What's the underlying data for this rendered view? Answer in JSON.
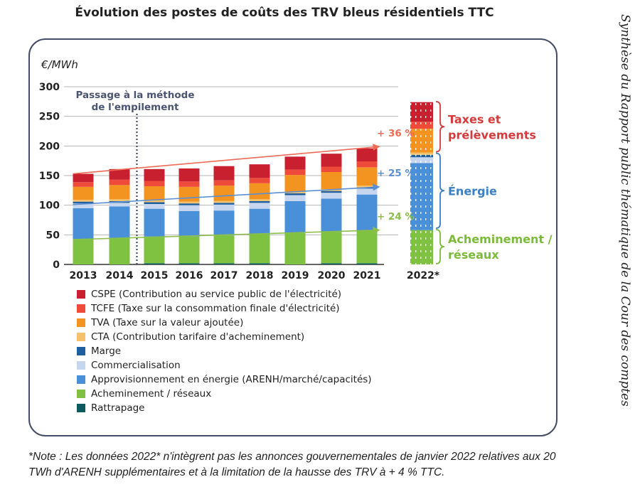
{
  "page": {
    "title": "Évolution des postes de coûts des TRV bleus résidentiels TTC",
    "side_text": "Synthèse du Rapport public thématique de la Cour des comptes",
    "note": "*Note : Les données 2022* n'intègrent pas les annonces gouvernementales de janvier 2022 relatives aux 20 TWh d'ARENH supplémentaires et à la limitation de la hausse des TRV à + 4 % TTC."
  },
  "chart_data": {
    "type": "bar",
    "stacked": true,
    "ylabel": "€/MWh",
    "ylim": [
      0,
      300
    ],
    "yticks": [
      0,
      50,
      100,
      150,
      200,
      250,
      300
    ],
    "grid": true,
    "categories": [
      "2013",
      "2014",
      "2015",
      "2016",
      "2017",
      "2018",
      "2019",
      "2020",
      "2021",
      "2022*"
    ],
    "series": [
      {
        "name": "Rattrapage",
        "color": "#0e5a5e",
        "values": [
          0,
          0,
          2,
          2,
          2,
          2,
          0,
          2,
          2,
          0
        ]
      },
      {
        "name": "Acheminement / réseaux",
        "color": "#7fc241",
        "values": [
          43,
          45,
          45,
          45,
          47,
          49,
          53,
          53,
          55,
          58
        ]
      },
      {
        "name": "Approvisionnement en énergie (ARENH/marché/capacités)",
        "color": "#4a90d9",
        "values": [
          52,
          53,
          47,
          43,
          42,
          43,
          54,
          56,
          61,
          113
        ]
      },
      {
        "name": "Commercialisation",
        "color": "#c6d6ee",
        "values": [
          8,
          6,
          8,
          10,
          10,
          10,
          10,
          10,
          10,
          10
        ]
      },
      {
        "name": "Marge",
        "color": "#1f5fa0",
        "values": [
          3,
          3,
          3,
          3,
          3,
          3,
          3,
          3,
          2,
          4
        ]
      },
      {
        "name": "CTA (Contribution tarifaire d'acheminement)",
        "color": "#f5c26b",
        "values": [
          3,
          3,
          3,
          3,
          3,
          3,
          3,
          3,
          3,
          4
        ]
      },
      {
        "name": "TVA (Taxe sur la valeur ajoutée)",
        "color": "#f39420",
        "values": [
          22,
          24,
          24,
          25,
          26,
          27,
          28,
          29,
          31,
          40
        ]
      },
      {
        "name": "TCFE (Taxe sur la consommation finale d'électricité)",
        "color": "#ee4b3b",
        "values": [
          8,
          9,
          9,
          9,
          9,
          9,
          9,
          9,
          10,
          12
        ]
      },
      {
        "name": "CSPE (Contribution au service public de l'électricité)",
        "color": "#c8202f",
        "values": [
          14,
          18,
          20,
          22,
          24,
          23,
          22,
          22,
          22,
          33
        ]
      }
    ],
    "legend_order": [
      "CSPE (Contribution au service public de l'électricité)",
      "TCFE (Taxe sur la consommation finale d'électricité)",
      "TVA (Taxe sur la valeur ajoutée)",
      "CTA (Contribution tarifaire d'acheminement)",
      "Marge",
      "Commercialisation",
      "Approvisionnement en énergie (ARENH/marché/capacités)",
      "Acheminement / réseaux",
      "Rattrapage"
    ],
    "legend_position": "bottom-left",
    "method_change": {
      "label_lines": [
        "Passage à la méthode",
        "de l'empilement"
      ],
      "between": [
        "2014",
        "2015"
      ]
    },
    "trend_lines": [
      {
        "label": "+ 36 %",
        "color": "#ef6b56",
        "from": {
          "x": "2013",
          "y": 153
        },
        "to": {
          "x": "2021",
          "y": 199
        }
      },
      {
        "label": "+ 25 %",
        "color": "#5b8fd3",
        "from": {
          "x": "2013",
          "y": 101
        },
        "to": {
          "x": "2021",
          "y": 131
        }
      },
      {
        "label": "+ 24 %",
        "color": "#8bbf4a",
        "from": {
          "x": "2013",
          "y": 42
        },
        "to": {
          "x": "2021",
          "y": 58
        }
      }
    ],
    "brackets": [
      {
        "label_lines": [
          "Taxes et",
          "prélèvements"
        ],
        "color": "#d63a3a",
        "range": [
          189,
          276
        ]
      },
      {
        "label_lines": [
          "Énergie"
        ],
        "color": "#3b7fc4",
        "range": [
          60,
          189
        ]
      },
      {
        "label_lines": [
          "Acheminement /",
          "réseaux"
        ],
        "color": "#7cbb3a",
        "range": [
          0,
          60
        ]
      }
    ]
  }
}
